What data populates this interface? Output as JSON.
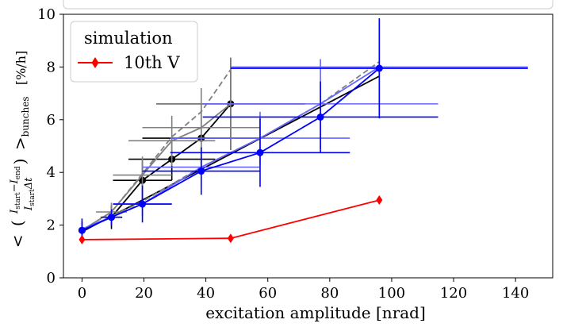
{
  "chart_data": {
    "type": "line",
    "xlabel": "excitation amplitude [nrad]",
    "ylabel": "< (ΔI / IΔt) >bunches [%/h]",
    "ylabel_parts": {
      "lt": "<",
      "lparen": "(",
      "numerator": "I",
      "num_sub1": "start",
      "minus": "−",
      "num_i2": "I",
      "num_sub2": "end",
      "denominator": "I",
      "den_sub": "start",
      "den_rest": "Δt",
      "rparen": ")",
      "gt": ">",
      "gt_sub": "bunches",
      "unit": "[%/h]"
    },
    "xlim": [
      -6,
      152
    ],
    "ylim": [
      0,
      10
    ],
    "xticks": [
      0,
      20,
      40,
      60,
      80,
      100,
      120,
      140
    ],
    "yticks": [
      0,
      2,
      4,
      6,
      8,
      10
    ],
    "grid": false,
    "legend": {
      "placement": "upper-left",
      "title": "simulation",
      "entries": [
        {
          "label": "10th V",
          "color": "#ff0000",
          "marker": "diamond"
        }
      ]
    },
    "series": [
      {
        "color": "#000000",
        "style": "solid",
        "marker": "circle",
        "alpha": 1,
        "points": [
          {
            "x": 0,
            "y": 1.8,
            "xerr": 0,
            "yerr": 0.3
          },
          {
            "x": 9.5,
            "y": 2.3,
            "xerr": 3.5,
            "yerr": 0.45
          },
          {
            "x": 19.5,
            "y": 3.7,
            "xerr": 9.5,
            "yerr": 0.75
          },
          {
            "x": 29,
            "y": 4.5,
            "xerr": 14,
            "yerr": 0.8
          },
          {
            "x": 38.5,
            "y": 5.3,
            "xerr": 19,
            "yerr": 1.3
          },
          {
            "x": 48,
            "y": 6.6,
            "xerr": 24,
            "yerr": 1.75
          }
        ]
      },
      {
        "color": "#000000",
        "style": "solid",
        "marker": "none",
        "alpha": 1,
        "points": [
          {
            "x": 0,
            "y": 1.75
          },
          {
            "x": 96,
            "y": 7.65
          }
        ]
      },
      {
        "color": "#808080",
        "style": "solid",
        "marker": "none",
        "alpha": 1,
        "points": [
          {
            "x": 0,
            "y": 1.8,
            "xerr": 0,
            "yerr": 0.3
          },
          {
            "x": 9.5,
            "y": 2.5,
            "xerr": 5,
            "yerr": 0.35
          },
          {
            "x": 19.5,
            "y": 3.9,
            "xerr": 9.5,
            "yerr": 0.7
          },
          {
            "x": 29,
            "y": 5.2,
            "xerr": 14,
            "yerr": 0.95
          },
          {
            "x": 38.5,
            "y": 5.7,
            "xerr": 19,
            "yerr": 1.5
          },
          {
            "x": 48,
            "y": 6.6,
            "xerr": 24,
            "yerr": 1.75
          }
        ]
      },
      {
        "color": "#808080",
        "style": "dashed",
        "marker": "none",
        "alpha": 1,
        "points": [
          {
            "x": 0,
            "y": 1.8
          },
          {
            "x": 9.5,
            "y": 2.5
          },
          {
            "x": 19.5,
            "y": 3.95
          },
          {
            "x": 29,
            "y": 5.35
          },
          {
            "x": 38.5,
            "y": 6.3
          },
          {
            "x": 48,
            "y": 7.9
          }
        ]
      },
      {
        "color": "#808080",
        "style": "dashed",
        "marker": "none",
        "alpha": 1,
        "points": [
          {
            "x": 0,
            "y": 1.8
          },
          {
            "x": 19.5,
            "y": 2.9
          },
          {
            "x": 38.5,
            "y": 4.2
          },
          {
            "x": 57.5,
            "y": 5.3
          },
          {
            "x": 77,
            "y": 6.6
          },
          {
            "x": 96,
            "y": 8.2
          }
        ]
      },
      {
        "color": "#6666ff",
        "style": "solid",
        "marker": "none",
        "alpha": 1,
        "points": [
          {
            "x": 0,
            "y": 1.85,
            "xerr": 0,
            "yerr": 0.3
          },
          {
            "x": 19.5,
            "y": 2.8,
            "xerr": 9.5,
            "yerr": 0.45
          },
          {
            "x": 38.5,
            "y": 4.2,
            "xerr": 19,
            "yerr": 0.75
          },
          {
            "x": 57.5,
            "y": 5.3,
            "xerr": 29,
            "yerr": 1
          },
          {
            "x": 77,
            "y": 6.6,
            "xerr": 38,
            "yerr": 1.7
          },
          {
            "x": 96,
            "y": 8.0,
            "xerr": 48,
            "yerr": 1.8
          }
        ]
      },
      {
        "color": "#0000ff",
        "style": "solid",
        "marker": "circle",
        "alpha": 1,
        "points": [
          {
            "x": 0,
            "y": 1.8,
            "xerr": 0,
            "yerr": 0.45
          },
          {
            "x": 9.5,
            "y": 2.3,
            "xerr": 3,
            "yerr": 0.3
          },
          {
            "x": 19.5,
            "y": 2.8,
            "xerr": 9.5,
            "yerr": 0.7
          },
          {
            "x": 38.5,
            "y": 4.05,
            "xerr": 19,
            "yerr": 0.9
          },
          {
            "x": 57.5,
            "y": 4.75,
            "xerr": 29,
            "yerr": 1.3
          },
          {
            "x": 77,
            "y": 6.1,
            "xerr": 38,
            "yerr": 1.35
          },
          {
            "x": 96,
            "y": 7.95,
            "xerr": 48,
            "yerr": 1.9
          }
        ]
      },
      {
        "color": "#ff0000",
        "style": "solid",
        "marker": "diamond",
        "alpha": 1,
        "points": [
          {
            "x": 0,
            "y": 1.45
          },
          {
            "x": 48,
            "y": 1.5
          },
          {
            "x": 96,
            "y": 2.95
          }
        ]
      }
    ]
  }
}
